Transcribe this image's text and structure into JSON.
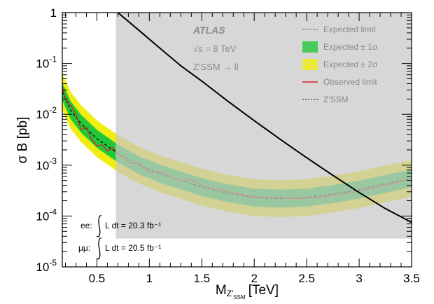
{
  "chart_data": {
    "type": "line",
    "xlabel": "M",
    "xlabel_sub": "Z'",
    "xlabel_subsub": "SSM",
    "xlabel_unit": "[TeV]",
    "ylabel": "σ B [pb]",
    "xlim": [
      0.17,
      3.5
    ],
    "ylim": [
      1e-05,
      1
    ],
    "yscale": "log",
    "x_ticks": [
      "0.5",
      "1",
      "1.5",
      "2",
      "2.5",
      "3",
      "3.5"
    ],
    "x_tick_values": [
      0.5,
      1,
      1.5,
      2,
      2.5,
      3,
      3.5
    ],
    "y_ticks": [
      {
        "base": "10",
        "exp": "-5",
        "value": 1e-05
      },
      {
        "base": "10",
        "exp": "-4",
        "value": 0.0001
      },
      {
        "base": "10",
        "exp": "-3",
        "value": 0.001
      },
      {
        "base": "10",
        "exp": "-2",
        "value": 0.01
      },
      {
        "base": "10",
        "exp": "-1",
        "value": 0.1
      },
      {
        "base": "1",
        "exp": "",
        "value": 1
      }
    ],
    "atlas_label": "ATLAS",
    "energy_label": "√s = 8 TeV",
    "process_label": "Z'SSM → ll",
    "lumi_ee": {
      "prefix": "ee:",
      "text": "L dt = 20.3 fb⁻¹"
    },
    "lumi_mumu": {
      "prefix": "μμ:",
      "text": "L dt = 20.5 fb⁻¹"
    },
    "legend": [
      {
        "label": "Expected limit",
        "style": "dashed"
      },
      {
        "label": "Expected ± 1σ",
        "style": "green-box"
      },
      {
        "label": "Expected ± 2σ",
        "style": "yellow-box"
      },
      {
        "label": "Observed limit",
        "style": "red-line"
      },
      {
        "label": "Z'SSM",
        "style": "black-line"
      }
    ],
    "series": [
      {
        "name": "Expected limit",
        "x": [
          0.17,
          0.25,
          0.35,
          0.5,
          0.7,
          0.9,
          1.1,
          1.3,
          1.5,
          1.75,
          2.0,
          2.25,
          2.5,
          2.75,
          3.0,
          3.25,
          3.5
        ],
        "y": [
          0.028,
          0.012,
          0.0065,
          0.0033,
          0.0017,
          0.001,
          0.00068,
          0.0005,
          0.00037,
          0.00028,
          0.00023,
          0.00022,
          0.00023,
          0.00027,
          0.00033,
          0.00043,
          0.00055
        ]
      },
      {
        "name": "Observed limit",
        "x": [
          0.17,
          0.2,
          0.25,
          0.3,
          0.35,
          0.4,
          0.45,
          0.5,
          0.55,
          0.6,
          0.65,
          0.7,
          0.8,
          0.9,
          1.0,
          1.1,
          1.2,
          1.3,
          1.4,
          1.5,
          1.6,
          1.7,
          1.8,
          2.0,
          2.2,
          2.4,
          2.6,
          2.8,
          3.0,
          3.2,
          3.4,
          3.5
        ],
        "y": [
          0.035,
          0.02,
          0.015,
          0.01,
          0.005,
          0.0055,
          0.0032,
          0.0024,
          0.0025,
          0.0019,
          0.0022,
          0.0017,
          0.0011,
          0.0011,
          0.0007,
          0.00075,
          0.00058,
          0.0005,
          0.00052,
          0.0004,
          0.00035,
          0.00033,
          0.00028,
          0.00024,
          0.00023,
          0.00022,
          0.00023,
          0.00026,
          0.00031,
          0.00038,
          0.00048,
          0.00054
        ]
      },
      {
        "name": "Z'SSM",
        "x": [
          0.7,
          0.9,
          1.1,
          1.3,
          1.5,
          1.75,
          2.0,
          2.25,
          2.5,
          2.75,
          3.0,
          3.25,
          3.5
        ],
        "y": [
          1.0,
          0.45,
          0.2,
          0.09,
          0.045,
          0.018,
          0.0075,
          0.0032,
          0.0014,
          0.00063,
          0.00029,
          0.00014,
          7.5e-05
        ]
      }
    ],
    "colors": {
      "observed": "#d42020",
      "theory": "#000000",
      "band1sigma": "#22c83a",
      "band2sigma": "#f0ee10",
      "overlay": "#c8c8c8"
    }
  }
}
